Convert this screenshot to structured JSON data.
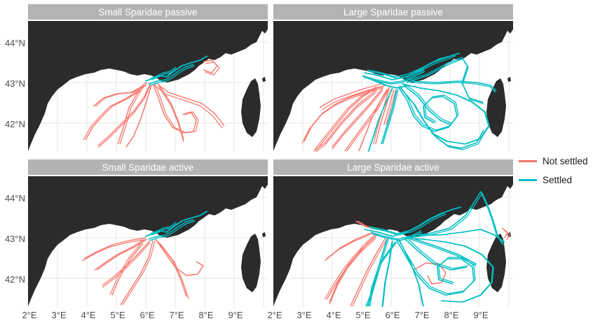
{
  "panels": [
    {
      "title": "Small Sparidae passive"
    },
    {
      "title": "Large Sparidae passive"
    },
    {
      "title": "Small Sparidae active"
    },
    {
      "title": "Large Sparidae active"
    }
  ],
  "axes": {
    "y_ticks": [
      "44°N",
      "43°N",
      "42°N"
    ],
    "x_ticks": [
      "2°E",
      "3°E",
      "4°E",
      "5°E",
      "6°E",
      "7°E",
      "8°E",
      "9°E"
    ]
  },
  "legend": [
    {
      "label": "Not settled",
      "color": "#f8766d"
    },
    {
      "label": "Settled",
      "color": "#00bfc4"
    }
  ],
  "colors": {
    "land": "#2b2b2b",
    "sea": "#ffffff",
    "grid": "#e6e6e6",
    "strip": "#b3b3b3"
  }
}
